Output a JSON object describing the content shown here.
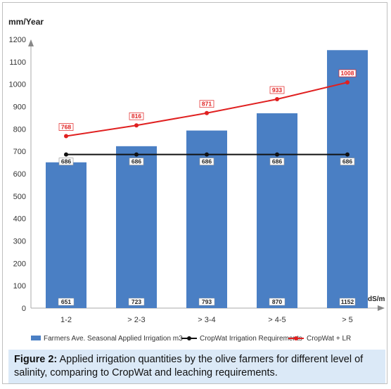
{
  "chart_data": {
    "type": "bar",
    "ylabel": "mm/Year",
    "xlabel": "dS/m",
    "ylim": [
      0,
      1200
    ],
    "yticks": [
      0,
      100,
      200,
      300,
      400,
      500,
      600,
      700,
      800,
      900,
      1000,
      1100,
      1200
    ],
    "categories": [
      "1-2",
      "> 2-3",
      "> 3-4",
      "> 4-5",
      "> 5"
    ],
    "series": [
      {
        "name": "Farmers Ave. Seasonal Applied Irrigation m3",
        "type": "bar",
        "values": [
          651,
          723,
          793,
          870,
          1152
        ],
        "color": "#4a7fc4"
      },
      {
        "name": "CropWat Irrigation Requirements",
        "type": "line",
        "values": [
          686,
          686,
          686,
          686,
          686
        ],
        "color": "#111111"
      },
      {
        "name": "CropWat + LR",
        "type": "line",
        "values": [
          768,
          816,
          871,
          933,
          1008
        ],
        "color": "#e02020"
      }
    ],
    "grid": false,
    "legend_position": "bottom"
  },
  "caption": {
    "label": "Figure 2:",
    "text": " Applied irrigation quantities by the olive farmers for different level of salinity, comparing to CropWat and leaching requirements."
  }
}
